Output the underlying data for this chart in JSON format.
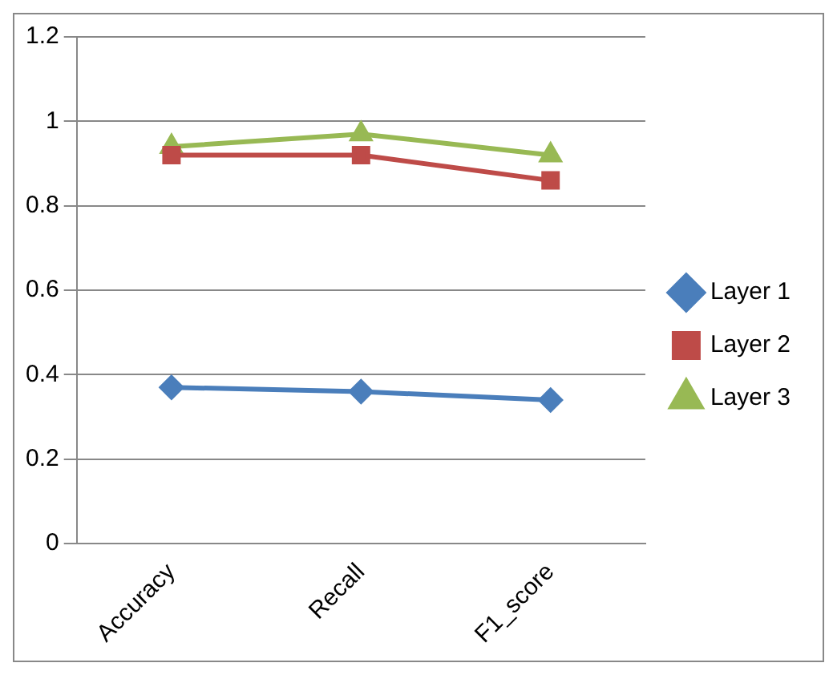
{
  "chart_data": {
    "type": "line",
    "categories": [
      "Accuracy",
      "Recall",
      "F1_score"
    ],
    "series": [
      {
        "name": "Layer 1",
        "color": "#4a7ebb",
        "marker": "diamond",
        "values": [
          0.37,
          0.36,
          0.34
        ]
      },
      {
        "name": "Layer 2",
        "color": "#be4b48",
        "marker": "square",
        "values": [
          0.92,
          0.92,
          0.86
        ]
      },
      {
        "name": "Layer 3",
        "color": "#98b954",
        "marker": "triangle",
        "values": [
          0.94,
          0.97,
          0.92
        ]
      }
    ],
    "ylim": [
      0,
      1.2
    ],
    "yticks": [
      0,
      0.2,
      0.4,
      0.6,
      0.8,
      1,
      1.2
    ],
    "grid": "y",
    "legend": "right"
  }
}
